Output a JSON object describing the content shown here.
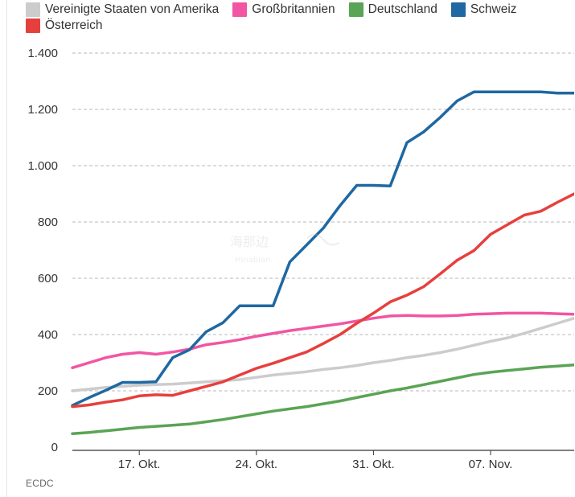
{
  "chart_data": {
    "type": "line",
    "x": [
      "13. Okt.",
      "14. Okt.",
      "15. Okt.",
      "16. Okt.",
      "17. Okt.",
      "18. Okt.",
      "19. Okt.",
      "20. Okt.",
      "21. Okt.",
      "22. Okt.",
      "23. Okt.",
      "24. Okt.",
      "25. Okt.",
      "26. Okt.",
      "27. Okt.",
      "28. Okt.",
      "29. Okt.",
      "30. Okt.",
      "31. Okt.",
      "01. Nov.",
      "02. Nov.",
      "03. Nov.",
      "04. Nov.",
      "05. Nov.",
      "06. Nov.",
      "07. Nov.",
      "08. Nov.",
      "09. Nov.",
      "10. Nov.",
      "11. Nov.",
      "12. Nov."
    ],
    "x_ticks": [
      {
        "index": 4,
        "label": "17. Okt."
      },
      {
        "index": 11,
        "label": "24. Okt."
      },
      {
        "index": 18,
        "label": "31. Okt."
      },
      {
        "index": 25,
        "label": "07. Nov."
      }
    ],
    "ylim": [
      0,
      1400
    ],
    "y_ticks": [
      {
        "value": 1400,
        "label": "1.400"
      },
      {
        "value": 1200,
        "label": "1.200"
      },
      {
        "value": 1000,
        "label": "1.000"
      },
      {
        "value": 800,
        "label": "800"
      },
      {
        "value": 600,
        "label": "600"
      },
      {
        "value": 400,
        "label": "400"
      },
      {
        "value": 200,
        "label": "200"
      },
      {
        "value": 0,
        "label": "0"
      }
    ],
    "series": [
      {
        "name": "Vereinigte Staaten von Amerika",
        "color": "#cccccc",
        "values": [
          200,
          206,
          212,
          216,
          220,
          222,
          224,
          228,
          232,
          236,
          240,
          248,
          256,
          262,
          268,
          276,
          282,
          290,
          300,
          308,
          318,
          326,
          336,
          348,
          362,
          376,
          388,
          404,
          422,
          440,
          458
        ]
      },
      {
        "name": "Großbritannien",
        "color": "#f255a3",
        "values": [
          282,
          300,
          318,
          330,
          336,
          330,
          338,
          348,
          364,
          372,
          382,
          394,
          404,
          414,
          422,
          430,
          438,
          448,
          458,
          466,
          468,
          466,
          466,
          468,
          472,
          474,
          476,
          476,
          476,
          474,
          472
        ]
      },
      {
        "name": "Deutschland",
        "color": "#5aa455",
        "values": [
          48,
          52,
          58,
          64,
          70,
          74,
          78,
          82,
          90,
          98,
          108,
          118,
          128,
          136,
          144,
          154,
          164,
          176,
          188,
          200,
          210,
          222,
          234,
          246,
          258,
          266,
          272,
          278,
          284,
          288,
          292
        ]
      },
      {
        "name": "Schweiz",
        "color": "#1f68a2",
        "values": [
          148,
          176,
          202,
          230,
          230,
          232,
          318,
          346,
          410,
          442,
          502,
          502,
          502,
          658,
          718,
          778,
          858,
          930,
          930,
          928,
          1082,
          1120,
          1172,
          1230,
          1262,
          1262,
          1262,
          1262,
          1262,
          1258,
          1258
        ]
      },
      {
        "name": "Österreich",
        "color": "#e6403d",
        "values": [
          144,
          150,
          160,
          168,
          182,
          186,
          184,
          200,
          216,
          232,
          256,
          280,
          298,
          318,
          338,
          368,
          400,
          440,
          476,
          516,
          540,
          570,
          616,
          664,
          698,
          756,
          790,
          824,
          838,
          870,
          900
        ]
      }
    ]
  },
  "source": "ECDC"
}
